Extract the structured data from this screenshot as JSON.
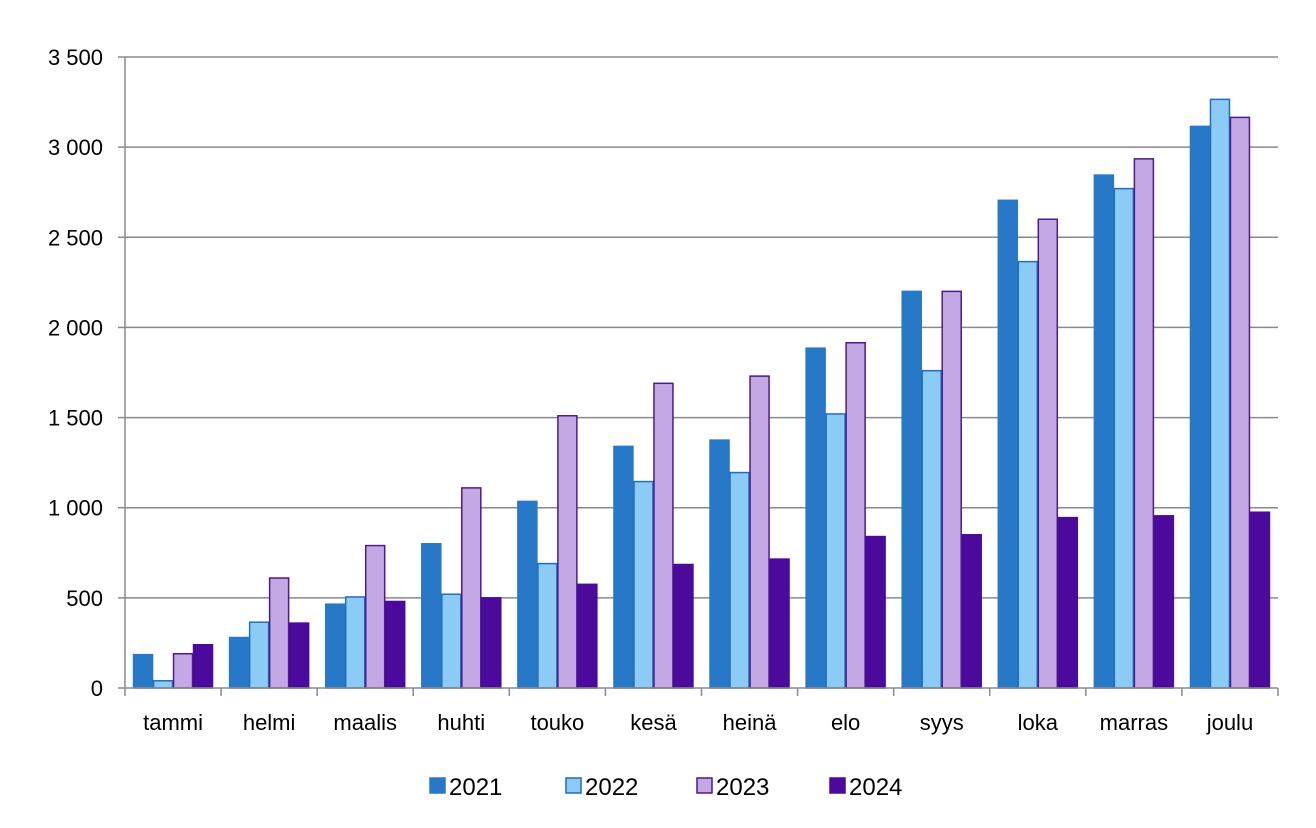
{
  "chart_data": {
    "type": "bar",
    "title": "",
    "xlabel": "",
    "ylabel": "",
    "ylim": [
      0,
      3500
    ],
    "yticks": [
      0,
      500,
      1000,
      1500,
      2000,
      2500,
      3000,
      3500
    ],
    "ytick_labels": [
      "0",
      "500",
      "1 000",
      "1 500",
      "2 000",
      "2 500",
      "3 000",
      "3 500"
    ],
    "grid": true,
    "legend_position": "bottom",
    "categories": [
      "tammi",
      "helmi",
      "maalis",
      "huhti",
      "touko",
      "kesä",
      "heinä",
      "elo",
      "syys",
      "loka",
      "marras",
      "joulu"
    ],
    "series": [
      {
        "name": "2021",
        "color": "#2878C8",
        "stroke": "#2878C8",
        "values": [
          185,
          280,
          465,
          800,
          1035,
          1340,
          1375,
          1885,
          2200,
          2705,
          2845,
          3115
        ]
      },
      {
        "name": "2022",
        "color": "#8CCBF5",
        "stroke": "#1F6FC0",
        "values": [
          40,
          365,
          505,
          520,
          690,
          1145,
          1195,
          1520,
          1760,
          2365,
          2770,
          3265
        ]
      },
      {
        "name": "2023",
        "color": "#C3A8E3",
        "stroke": "#4B1C8C",
        "values": [
          190,
          610,
          790,
          1110,
          1510,
          1690,
          1730,
          1915,
          2200,
          2600,
          2935,
          3165
        ]
      },
      {
        "name": "2024",
        "color": "#4B0A9C",
        "stroke": "#4B0A9C",
        "values": [
          240,
          360,
          480,
          500,
          575,
          685,
          715,
          840,
          850,
          945,
          955,
          975
        ]
      }
    ]
  }
}
